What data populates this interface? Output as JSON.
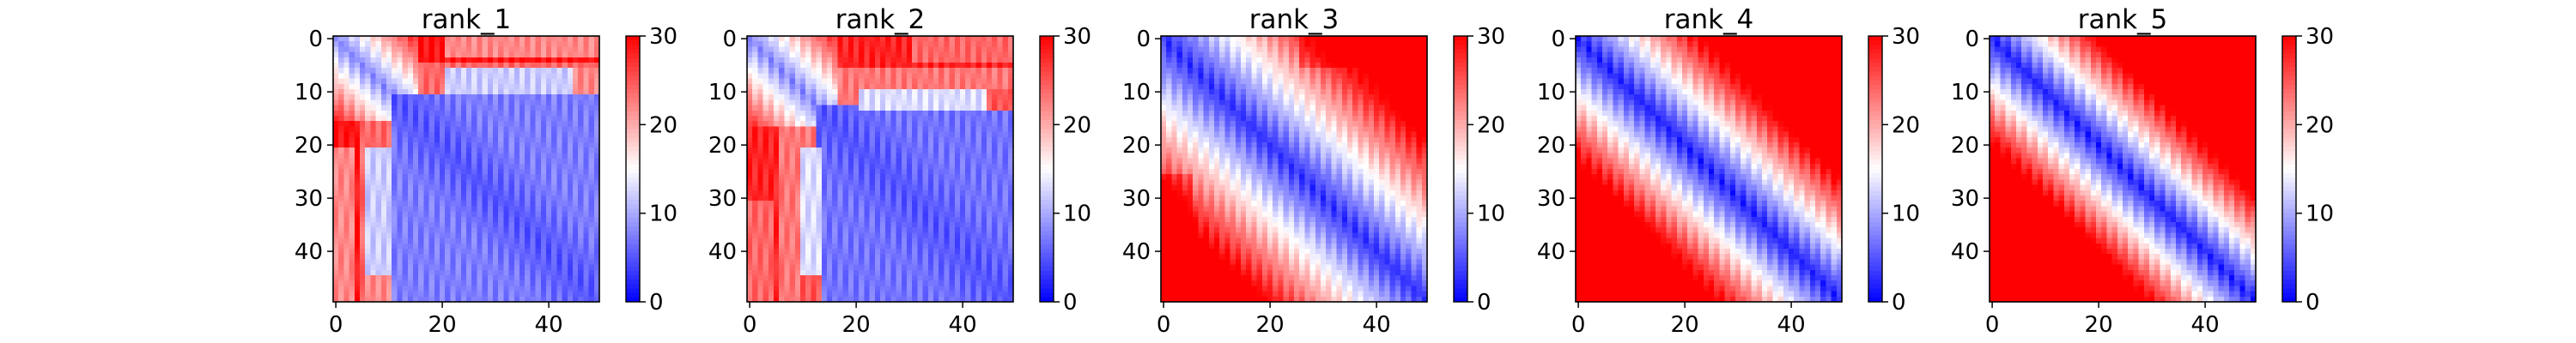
{
  "chart_data": {
    "type": "heatmap",
    "cmap": "bwr",
    "vmin": 0,
    "vmax": 30,
    "matrix_size": 50,
    "x_ticks": [
      0,
      20,
      40
    ],
    "y_ticks": [
      0,
      10,
      20,
      30,
      40
    ],
    "colorbar_ticks": [
      0,
      10,
      20,
      30
    ],
    "panels": [
      {
        "title": "rank_1"
      },
      {
        "title": "rank_2"
      },
      {
        "title": "rank_3"
      },
      {
        "title": "rank_4"
      },
      {
        "title": "rank_5"
      }
    ]
  }
}
